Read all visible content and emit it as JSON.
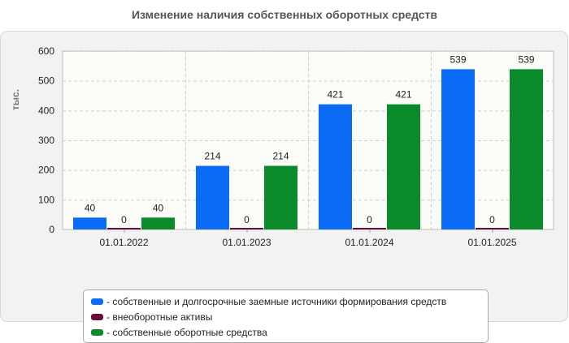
{
  "chart_data": {
    "type": "bar",
    "title": "Изменение наличия собственных оборотных средств",
    "ylabel": "тыс.",
    "xlabel": "",
    "ylim": [
      0,
      600
    ],
    "yticks": [
      0,
      100,
      200,
      300,
      400,
      500,
      600
    ],
    "grid": true,
    "legend_position": "bottom",
    "categories": [
      "01.01.2022",
      "01.01.2023",
      "01.01.2024",
      "01.01.2025"
    ],
    "series": [
      {
        "name": "собственные и долгосрочные заемные источники формирования средств",
        "color": "#0a6cf5",
        "values": [
          40,
          214,
          421,
          539
        ]
      },
      {
        "name": "внеоборотные активы",
        "color": "#6b0d3a",
        "values": [
          0,
          0,
          0,
          0
        ]
      },
      {
        "name": "собственные оборотные средства",
        "color": "#0a8a2a",
        "values": [
          40,
          214,
          421,
          539
        ]
      }
    ]
  }
}
